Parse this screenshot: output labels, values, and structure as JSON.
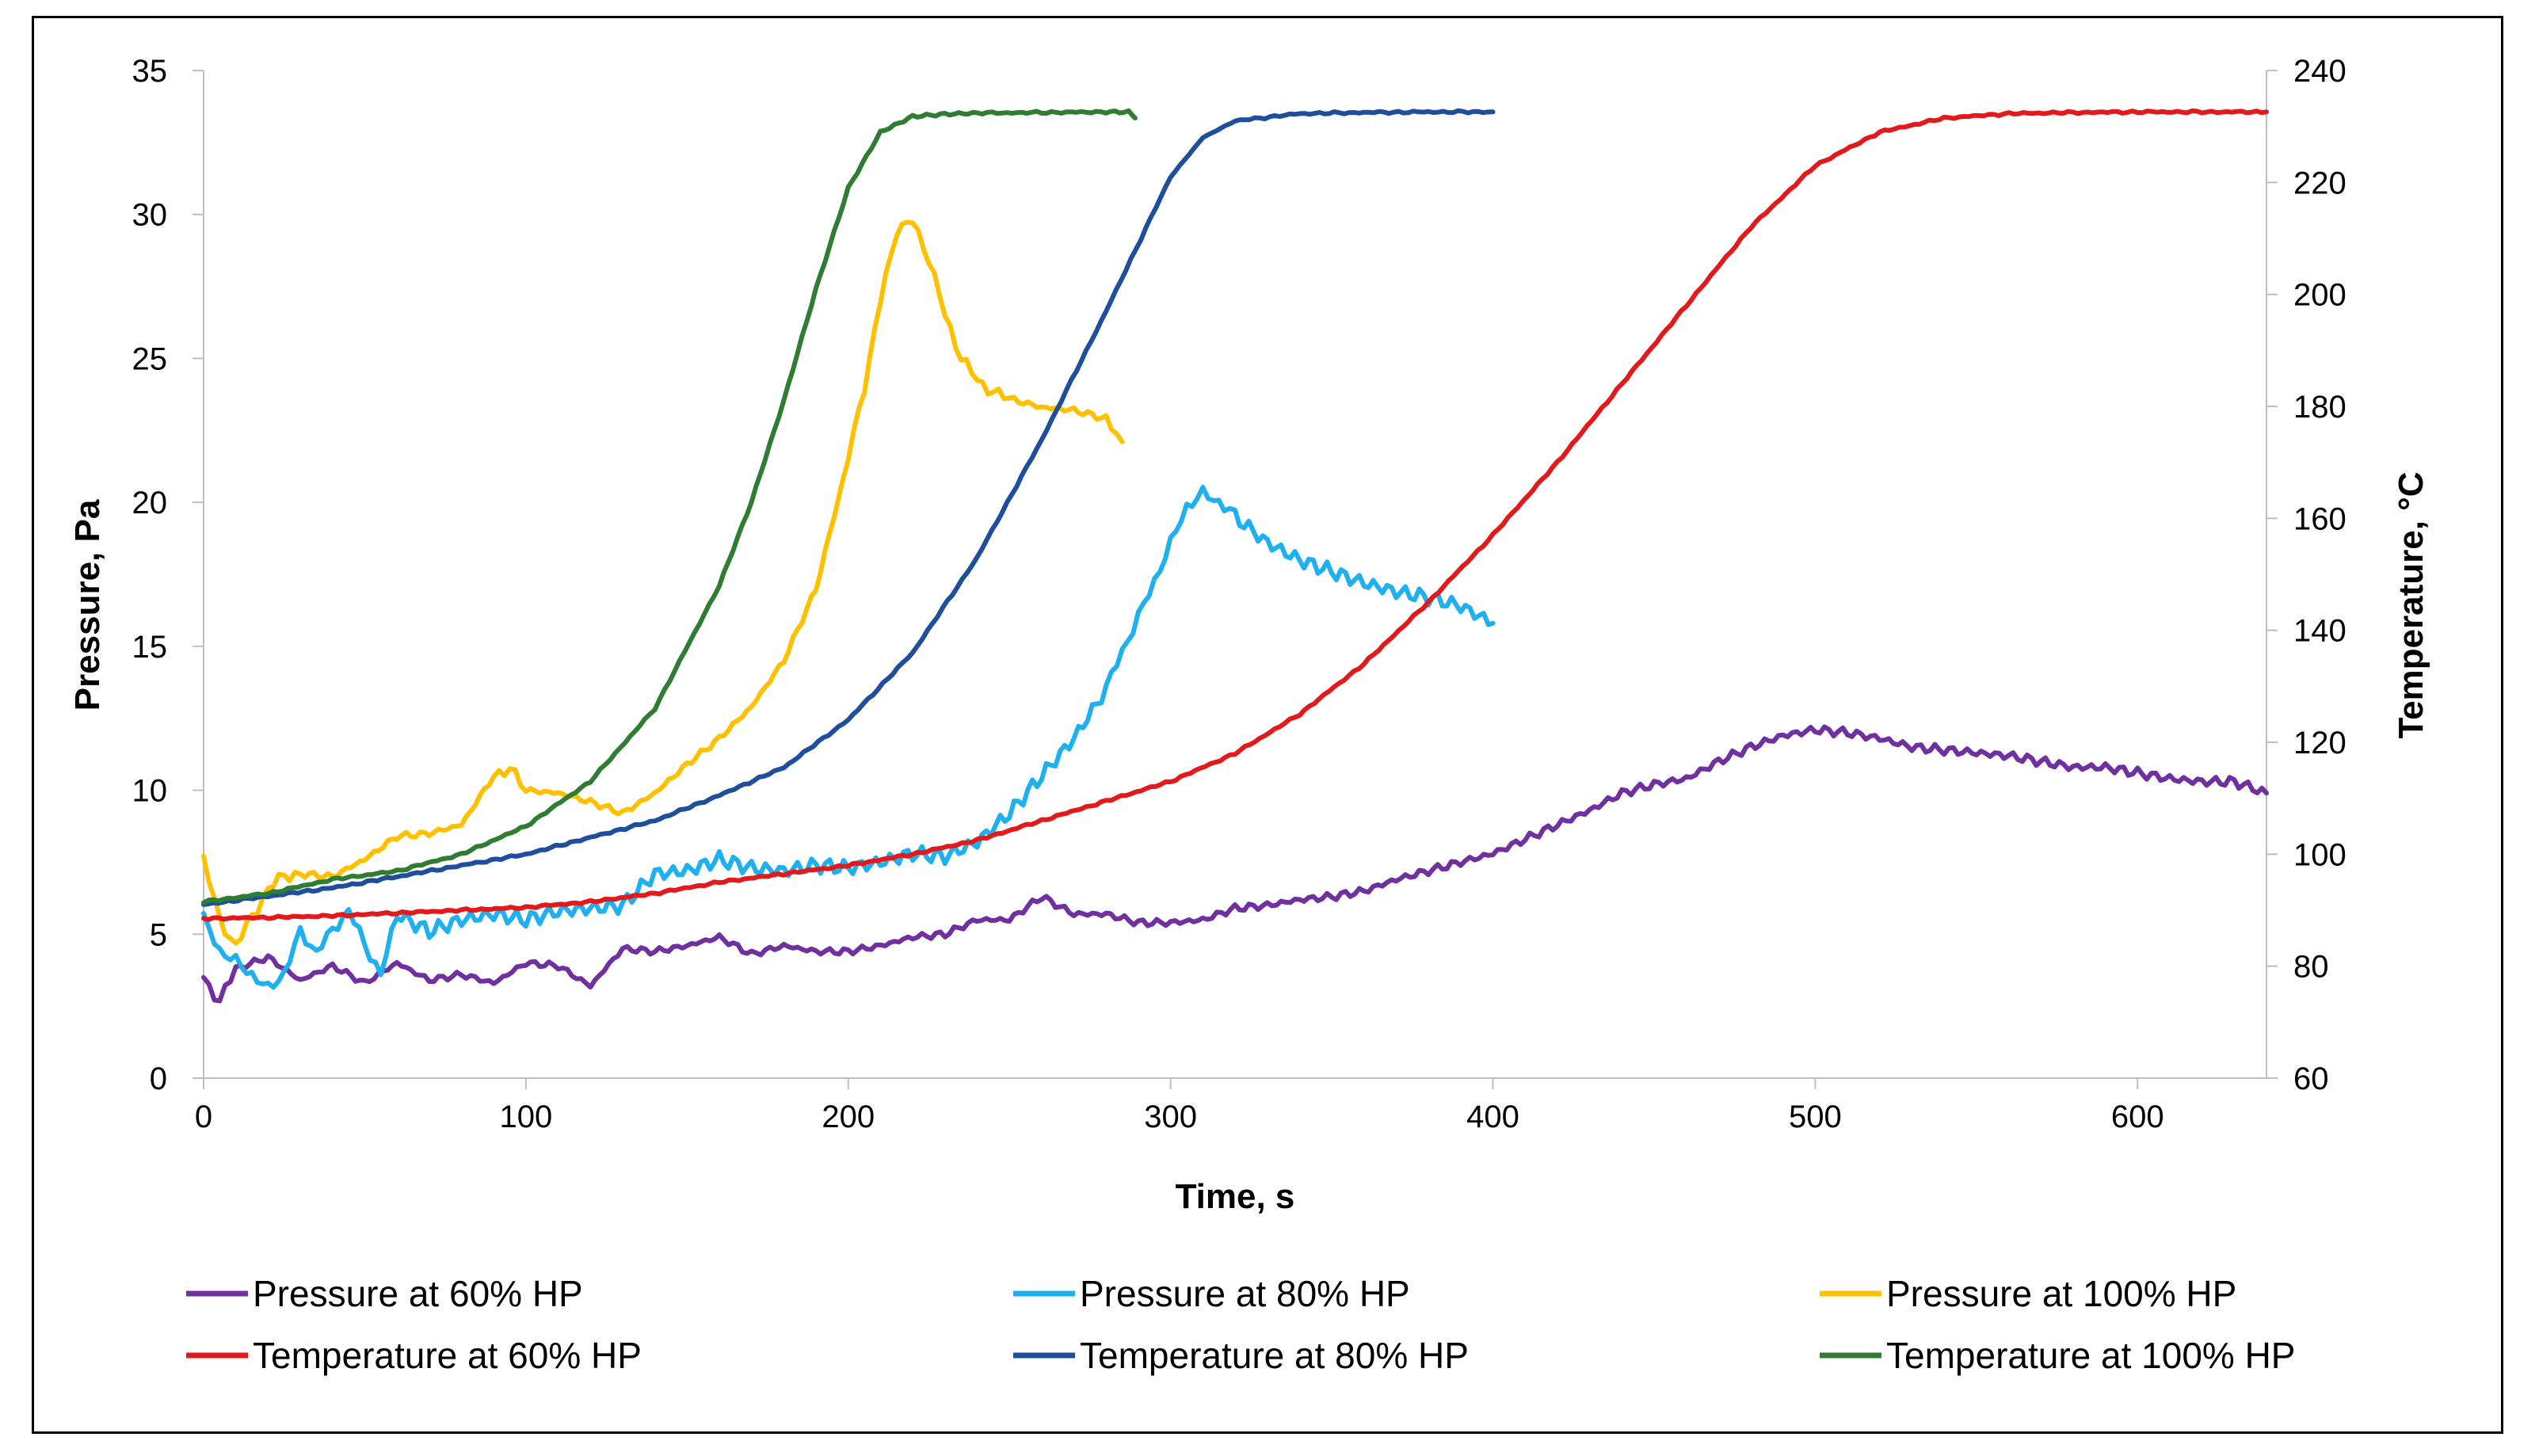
{
  "chart_data": {
    "type": "line",
    "title": "",
    "xlabel": "Time, s",
    "ylabel": "Pressure, Pa",
    "y2label": "Temperature, °C",
    "xlim": [
      0,
      640
    ],
    "ylim": [
      0,
      35
    ],
    "y2lim": [
      60,
      240
    ],
    "xticks": [
      0,
      100,
      200,
      300,
      400,
      500,
      600
    ],
    "yticks": [
      0,
      5,
      10,
      15,
      20,
      25,
      30,
      35
    ],
    "y2ticks": [
      60,
      80,
      100,
      120,
      140,
      160,
      180,
      200,
      220,
      240
    ],
    "grid": false,
    "legend_position": "bottom",
    "series": [
      {
        "name": "Pressure at 60% HP",
        "axis": "left",
        "color": "#7030A0",
        "x": [
          0,
          5,
          10,
          20,
          30,
          40,
          50,
          60,
          70,
          80,
          90,
          100,
          110,
          120,
          130,
          140,
          150,
          160,
          170,
          180,
          190,
          200,
          210,
          220,
          230,
          240,
          250,
          260,
          270,
          280,
          290,
          300,
          310,
          320,
          330,
          340,
          350,
          360,
          370,
          380,
          390,
          400,
          410,
          420,
          430,
          440,
          450,
          460,
          470,
          480,
          490,
          500,
          510,
          520,
          530,
          540,
          550,
          560,
          570,
          580,
          590,
          600,
          610,
          620,
          630,
          640
        ],
        "values": [
          3.5,
          2.6,
          3.8,
          4.2,
          3.4,
          3.9,
          3.3,
          4.0,
          3.4,
          3.6,
          3.3,
          4.0,
          3.9,
          3.2,
          4.5,
          4.4,
          4.6,
          4.9,
          4.3,
          4.6,
          4.4,
          4.4,
          4.6,
          4.9,
          5.0,
          5.5,
          5.5,
          6.3,
          5.7,
          5.7,
          5.4,
          5.4,
          5.5,
          5.9,
          6.0,
          6.2,
          6.3,
          6.5,
          6.9,
          7.2,
          7.5,
          7.8,
          8.3,
          8.8,
          9.3,
          9.9,
          10.2,
          10.4,
          11.0,
          11.5,
          11.9,
          12.1,
          12.0,
          11.8,
          11.5,
          11.4,
          11.3,
          11.2,
          11.0,
          10.8,
          10.8,
          10.6,
          10.4,
          10.3,
          10.3,
          9.9
        ]
      },
      {
        "name": "Pressure at 80% HP",
        "axis": "left",
        "color": "#1FB0F0",
        "x": [
          0,
          5,
          10,
          15,
          20,
          25,
          30,
          35,
          40,
          45,
          50,
          55,
          60,
          70,
          80,
          90,
          100,
          110,
          120,
          130,
          140,
          150,
          160,
          170,
          180,
          190,
          200,
          210,
          220,
          230,
          240,
          250,
          260,
          270,
          280,
          285,
          290,
          295,
          300,
          305,
          310,
          315,
          320,
          330,
          340,
          350,
          360,
          370,
          380,
          390,
          400
        ],
        "values": [
          5.5,
          4.4,
          4.0,
          3.6,
          3.1,
          3.7,
          5.1,
          4.4,
          5.1,
          5.8,
          4.6,
          3.6,
          5.7,
          5.1,
          5.5,
          5.7,
          5.5,
          5.8,
          5.9,
          6.0,
          7.1,
          7.2,
          7.6,
          7.3,
          7.2,
          7.4,
          7.3,
          7.5,
          7.8,
          7.7,
          8.2,
          9.2,
          10.5,
          11.8,
          13.5,
          14.8,
          16.0,
          17.3,
          18.6,
          19.9,
          20.3,
          20.0,
          19.5,
          18.6,
          18.0,
          17.6,
          17.2,
          16.9,
          16.7,
          16.4,
          15.8
        ]
      },
      {
        "name": "Pressure at 100% HP",
        "axis": "left",
        "color": "#FFC000",
        "x": [
          0,
          5,
          10,
          15,
          20,
          25,
          30,
          40,
          50,
          60,
          70,
          80,
          90,
          95,
          100,
          110,
          120,
          130,
          140,
          150,
          160,
          170,
          180,
          190,
          200,
          205,
          210,
          215,
          220,
          225,
          230,
          235,
          240,
          245,
          250,
          260,
          270,
          280,
          285
        ],
        "values": [
          7.6,
          5.4,
          4.6,
          5.6,
          6.6,
          7.1,
          7.1,
          7.0,
          7.6,
          8.4,
          8.5,
          8.8,
          10.5,
          10.8,
          10.0,
          9.9,
          9.6,
          9.2,
          9.9,
          10.9,
          11.8,
          12.9,
          14.5,
          17.0,
          21.5,
          24.0,
          27.0,
          29.5,
          29.8,
          28.5,
          26.5,
          25.0,
          24.2,
          23.8,
          23.6,
          23.3,
          23.2,
          22.9,
          22.1
        ]
      },
      {
        "name": "Temperature at 60% HP",
        "axis": "right",
        "color": "#E31A1C",
        "x": [
          0,
          20,
          40,
          60,
          80,
          100,
          120,
          140,
          160,
          180,
          200,
          220,
          240,
          260,
          280,
          300,
          320,
          340,
          360,
          380,
          400,
          420,
          440,
          460,
          480,
          500,
          520,
          540,
          560,
          580,
          600,
          620,
          640
        ],
        "values": [
          88.5,
          88.7,
          89.0,
          89.5,
          90.0,
          90.5,
          91.5,
          93.0,
          95.0,
          96.5,
          98.0,
          100.0,
          102.5,
          106.0,
          109.5,
          113.0,
          118.0,
          125.0,
          134.0,
          145.0,
          157.0,
          170.0,
          184.0,
          198.0,
          212.0,
          223.0,
          229.0,
          231.5,
          232.3,
          232.5,
          232.6,
          232.6,
          232.6
        ]
      },
      {
        "name": "Temperature at 80% HP",
        "axis": "right",
        "color": "#1F4E9C",
        "x": [
          0,
          20,
          40,
          60,
          80,
          100,
          120,
          140,
          160,
          180,
          200,
          220,
          240,
          260,
          280,
          300,
          310,
          320,
          340,
          360,
          380,
          400
        ],
        "values": [
          91.0,
          92.5,
          94.0,
          96.0,
          98.0,
          100.0,
          103.0,
          106.0,
          110.5,
          115.5,
          124.0,
          136.0,
          153.0,
          174.0,
          197.0,
          221.0,
          228.0,
          231.0,
          232.3,
          232.5,
          232.6,
          232.6
        ]
      },
      {
        "name": "Temperature at 100% HP",
        "axis": "right",
        "color": "#2E7D32",
        "x": [
          0,
          20,
          40,
          60,
          80,
          100,
          120,
          140,
          160,
          170,
          180,
          190,
          200,
          210,
          220,
          230,
          240,
          260,
          280,
          287,
          289
        ],
        "values": [
          91.5,
          93.0,
          95.5,
          97.0,
          100.0,
          105.0,
          113.0,
          126.0,
          148.0,
          163.0,
          181.0,
          201.0,
          219.0,
          229.0,
          231.8,
          232.2,
          232.4,
          232.5,
          232.6,
          232.6,
          231.5
        ]
      }
    ]
  }
}
